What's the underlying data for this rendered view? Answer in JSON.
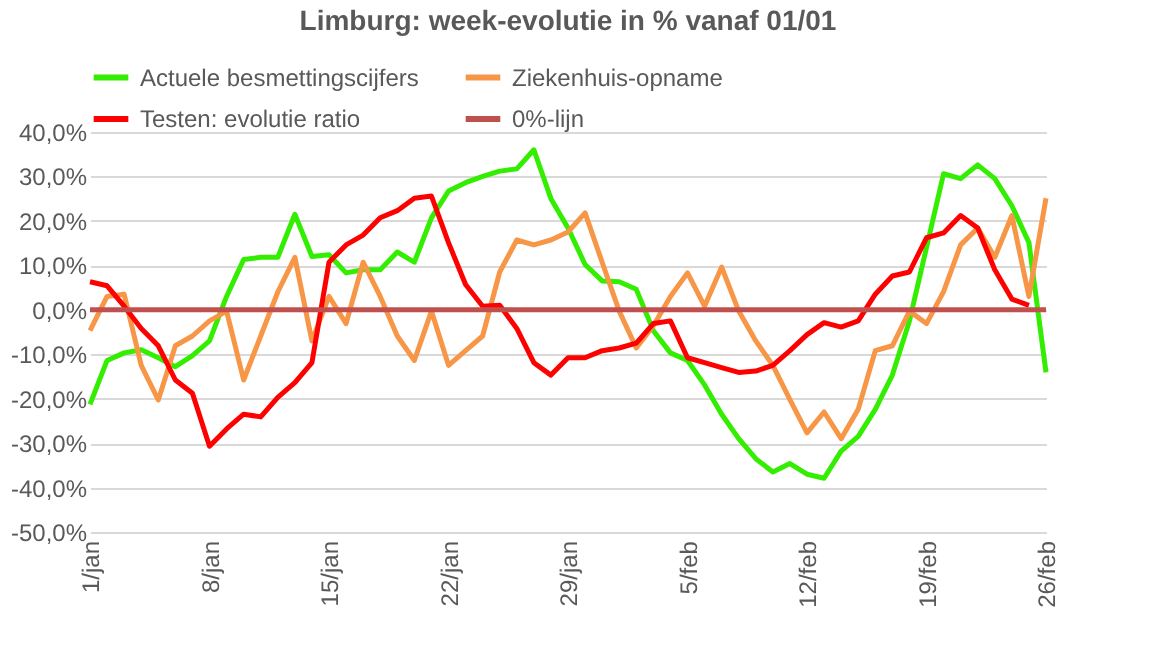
{
  "chart_data": {
    "type": "line",
    "title": "Limburg: week-evolutie in %  vanaf 01/01",
    "categories": [
      "1/jan",
      null,
      null,
      null,
      null,
      null,
      null,
      "8/jan",
      null,
      null,
      null,
      null,
      null,
      null,
      "15/jan",
      null,
      null,
      null,
      null,
      null,
      null,
      "22/jan",
      null,
      null,
      null,
      null,
      null,
      null,
      "29/jan",
      null,
      null,
      null,
      null,
      null,
      null,
      "5/feb",
      null,
      null,
      null,
      null,
      null,
      null,
      "12/feb",
      null,
      null,
      null,
      null,
      null,
      null,
      "19/feb",
      null,
      null,
      null,
      null,
      null,
      null,
      "26/feb"
    ],
    "series": [
      {
        "name": "Actuele besmettingscijfers",
        "color": "#33ee00",
        "values": [
          -21.3,
          -11.4,
          -9.7,
          -9,
          -10.8,
          -12.8,
          -10.3,
          -7,
          3,
          11.3,
          11.8,
          11.8,
          21.5,
          12,
          12.4,
          8.3,
          9,
          9,
          13,
          10.7,
          20.7,
          26.7,
          28.6,
          30,
          31.2,
          31.7,
          36,
          25,
          18.4,
          10.2,
          6.5,
          6.3,
          4.6,
          -4.7,
          -9.7,
          -11.4,
          -16.9,
          -23.5,
          -29,
          -33.5,
          -36.5,
          -34.6,
          -37,
          -37.9,
          -31.8,
          -28.5,
          -22.4,
          -14.7,
          -2.5,
          14,
          30.6,
          29.5,
          32.6,
          29.5,
          23.4,
          15.1,
          -14.1
        ]
      },
      {
        "name": "Ziekenhuis-opname",
        "color": "#f79646",
        "values": [
          -4.7,
          3,
          3.5,
          -12.5,
          -20.3,
          -8.1,
          -5.9,
          -2.5,
          -0.3,
          -15.8,
          -5.9,
          4,
          11.8,
          -7,
          3,
          -3.1,
          10.7,
          3,
          -5.9,
          -11.4,
          -0.3,
          -12.5,
          -9.2,
          -5.9,
          8.5,
          15.7,
          14.6,
          15.7,
          17.5,
          21.8,
          10.7,
          -0.3,
          -8.6,
          -3.6,
          3,
          8.3,
          0.8,
          9.6,
          -0.3,
          -7,
          -12.5,
          -20.2,
          -27.7,
          -23,
          -29,
          -22.4,
          -9.2,
          -8.1,
          -0.3,
          -3.1,
          4.1,
          14.6,
          18.4,
          11.8,
          21.2,
          3,
          25.1
        ]
      },
      {
        "name": "Testen: evolutie ratio",
        "color": "#ff0000",
        "values": [
          6.3,
          5.4,
          0.8,
          -4.2,
          -8.1,
          -15.8,
          -18.8,
          -30.7,
          -26.8,
          -23.5,
          -24.1,
          -19.7,
          -16.4,
          -11.9,
          10.7,
          14.6,
          16.8,
          20.7,
          22.3,
          25.1,
          25.6,
          15.1,
          5.7,
          0.8,
          1,
          -4.2,
          -11.9,
          -14.7,
          -10.8,
          -10.8,
          -9.2,
          -8.6,
          -7.5,
          -3.1,
          -2.5,
          -10.8,
          -11.9,
          -13,
          -14.1,
          -13.8,
          -12.5,
          -9.2,
          -5.6,
          -2.9,
          -3.9,
          -2.5,
          3.5,
          7.6,
          8.5,
          16.2,
          17.3,
          21.2,
          18.4,
          9,
          2.4,
          1,
          null
        ]
      },
      {
        "name": "0%-lijn",
        "color": "#c0504d",
        "values": [
          0,
          0,
          0,
          0,
          0,
          0,
          0,
          0,
          0,
          0,
          0,
          0,
          0,
          0,
          0,
          0,
          0,
          0,
          0,
          0,
          0,
          0,
          0,
          0,
          0,
          0,
          0,
          0,
          0,
          0,
          0,
          0,
          0,
          0,
          0,
          0,
          0,
          0,
          0,
          0,
          0,
          0,
          0,
          0,
          0,
          0,
          0,
          0,
          0,
          0,
          0,
          0,
          0,
          0,
          0,
          0,
          0
        ]
      }
    ],
    "ylim": [
      -50,
      40
    ],
    "yticks": [
      {
        "value": 40,
        "label": "40,0%"
      },
      {
        "value": 30,
        "label": "30,0%"
      },
      {
        "value": 20,
        "label": "20,0%"
      },
      {
        "value": 10,
        "label": "10,0%"
      },
      {
        "value": 0,
        "label": "0,0%"
      },
      {
        "value": -10,
        "label": "-10,0%"
      },
      {
        "value": -20,
        "label": "-20,0%"
      },
      {
        "value": -30,
        "label": "-30,0%"
      },
      {
        "value": -40,
        "label": "-40,0%"
      },
      {
        "value": -50,
        "label": "-50,0%"
      }
    ],
    "grid": "y",
    "legend": "top",
    "marker": "none",
    "line_style": "solid"
  }
}
